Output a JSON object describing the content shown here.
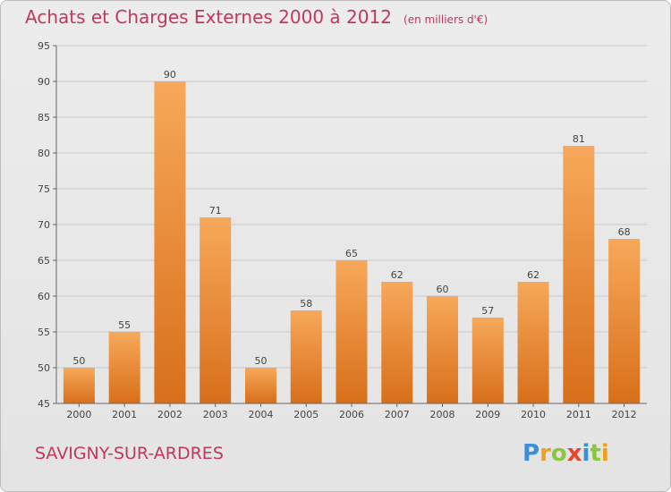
{
  "header": {
    "title": "Achats et Charges Externes 2000 à 2012",
    "subtitle": "(en milliers d'€)"
  },
  "footer": {
    "commune": "SAVIGNY-SUR-ARDRES",
    "logo_text": "Proxiti"
  },
  "colors": {
    "title": "#c0395d",
    "bar_top": "#f7a85a",
    "bar_bottom": "#d86f1a",
    "grid": "#c8c8c8"
  },
  "chart_data": {
    "type": "bar",
    "title": "Achats et Charges Externes 2000 à 2012",
    "subtitle": "(en milliers d'€)",
    "categories": [
      "2000",
      "2001",
      "2002",
      "2003",
      "2004",
      "2005",
      "2006",
      "2007",
      "2008",
      "2009",
      "2010",
      "2011",
      "2012"
    ],
    "values": [
      50,
      55,
      90,
      71,
      50,
      58,
      65,
      62,
      60,
      57,
      62,
      81,
      68
    ],
    "ylim": [
      45,
      95
    ],
    "yticks": [
      45,
      50,
      55,
      60,
      65,
      70,
      75,
      80,
      85,
      90,
      95
    ],
    "grid": true,
    "xlabel": "",
    "ylabel": ""
  }
}
